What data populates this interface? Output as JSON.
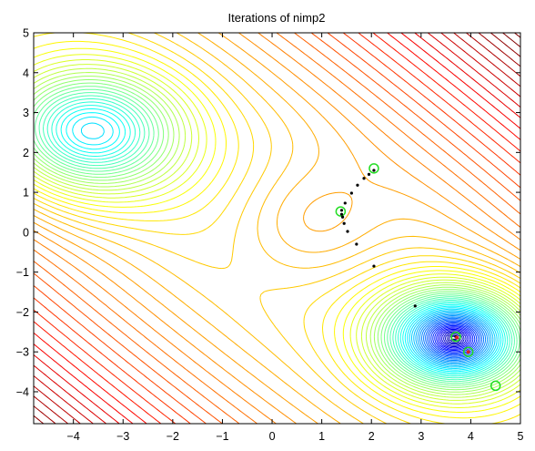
{
  "chart_data": {
    "type": "contour",
    "title": "Iterations of nimp2",
    "xlabel": "",
    "ylabel": "",
    "xlim": [
      -4.8,
      5
    ],
    "ylim": [
      -4.8,
      5
    ],
    "x_ticks": [
      -4,
      -3,
      -2,
      -1,
      0,
      1,
      2,
      3,
      4,
      5
    ],
    "y_ticks": [
      5,
      4,
      3,
      2,
      1,
      0,
      -1,
      -2,
      -3,
      -4
    ],
    "x_tick_labels": [
      "−4",
      "−3",
      "−2",
      "−1",
      "0",
      "1",
      "2",
      "3",
      "4",
      "5"
    ],
    "y_tick_labels": [
      "5",
      "4",
      "3",
      "2",
      "1",
      "0",
      "−1",
      "−2",
      "−3",
      "−4"
    ],
    "grid": false,
    "legend": "none",
    "colormap": "jet",
    "contour": {
      "local_minima": [
        [
          -3.7,
          2.5
        ],
        [
          3.7,
          -2.65
        ]
      ],
      "saddle_point": [
        0.8,
        0.2
      ]
    },
    "iterates": {
      "color": "#000000",
      "points": [
        [
          2.05,
          1.55
        ],
        [
          1.95,
          1.45
        ],
        [
          1.85,
          1.35
        ],
        [
          1.72,
          1.18
        ],
        [
          1.6,
          0.98
        ],
        [
          1.47,
          0.73
        ],
        [
          1.4,
          0.55
        ],
        [
          1.4,
          0.45
        ],
        [
          1.42,
          0.38
        ],
        [
          1.45,
          0.22
        ],
        [
          1.52,
          0.02
        ],
        [
          1.7,
          -0.3
        ],
        [
          2.05,
          -0.85
        ],
        [
          2.88,
          -1.85
        ],
        [
          3.7,
          -2.62
        ]
      ]
    },
    "start_points": {
      "color": "#22dd22",
      "points": [
        [
          2.05,
          1.6
        ],
        [
          1.38,
          0.52
        ],
        [
          3.7,
          -2.62
        ],
        [
          3.95,
          -3.0
        ],
        [
          4.5,
          -3.85
        ]
      ]
    },
    "red_markers": {
      "color": "#dd2222",
      "points": [
        [
          3.72,
          -2.64
        ],
        [
          3.95,
          -3.0
        ]
      ]
    }
  }
}
